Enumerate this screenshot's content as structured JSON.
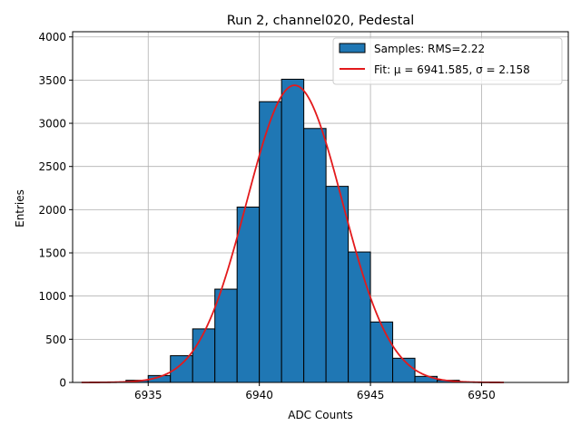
{
  "chart_data": {
    "type": "bar",
    "title": "Run 2, channel020, Pedestal",
    "xlabel": "ADC Counts",
    "ylabel": "Entries",
    "xlim": [
      6931.6,
      6953.9
    ],
    "ylim": [
      0,
      4060
    ],
    "xticks": [
      6935,
      6940,
      6945,
      6950
    ],
    "yticks": [
      0,
      500,
      1000,
      1500,
      2000,
      2500,
      3000,
      3500,
      4000
    ],
    "grid": true,
    "legend_position": "upper-right",
    "bin_width": 1,
    "series": [
      {
        "name": "Samples: RMS=2.22",
        "kind": "histogram",
        "color": "#1f77b4",
        "bin_starts": [
          6934,
          6935,
          6936,
          6937,
          6938,
          6939,
          6940,
          6941,
          6942,
          6943,
          6944,
          6945,
          6946,
          6947,
          6948
        ],
        "values": [
          25,
          80,
          310,
          620,
          1080,
          2030,
          3250,
          3510,
          2940,
          2270,
          1510,
          700,
          280,
          70,
          25
        ]
      },
      {
        "name": "Fit: μ = 6941.585, σ = 2.158",
        "kind": "gaussian-fit",
        "color": "#e31a1c",
        "mu": 6941.585,
        "sigma": 2.158,
        "amplitude": 3440,
        "x_range": [
          6932,
          6951
        ]
      }
    ]
  }
}
